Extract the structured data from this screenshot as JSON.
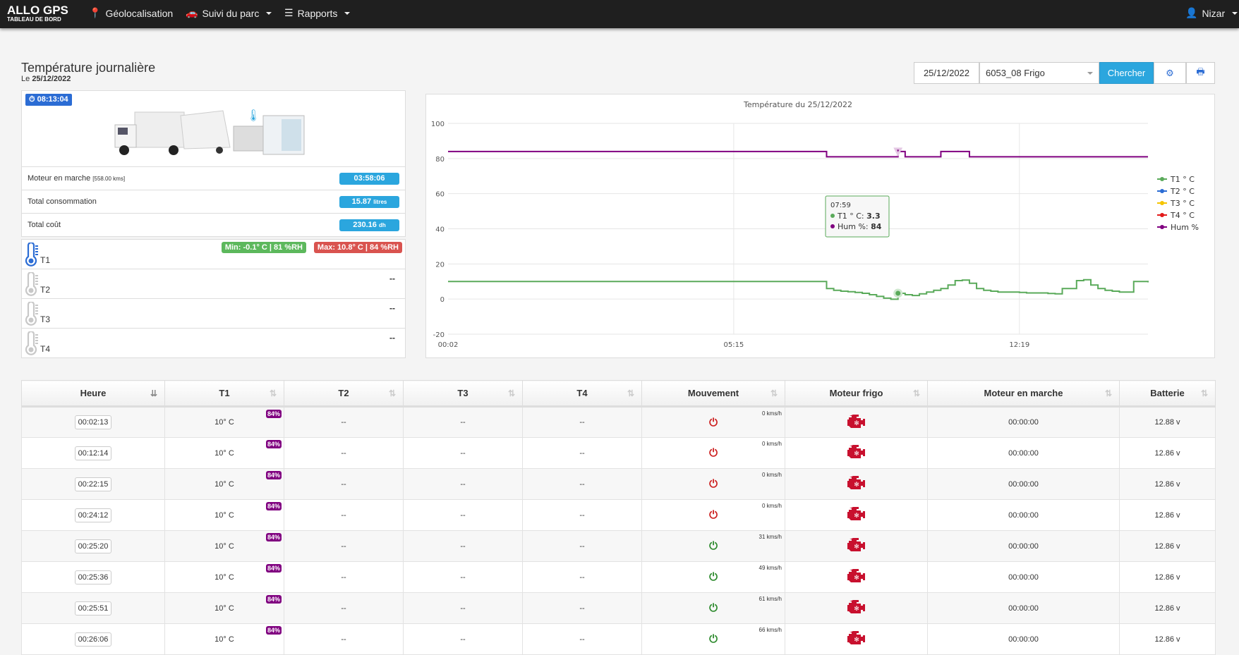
{
  "nav": {
    "brand": "ALLO GPS",
    "brand_sub": "TABLEAU DE BORD",
    "items": [
      "Géolocalisation",
      "Suivi du parc",
      "Rapports"
    ],
    "user": "Nizar"
  },
  "page": {
    "title": "Température journalière",
    "date_prefix": "Le",
    "date": "25/12/2022"
  },
  "toolbar": {
    "date_value": "25/12/2022",
    "vehicle": "6053_08 Frigo",
    "search_label": "Chercher",
    "icons": [
      "gear-icon",
      "print-icon"
    ]
  },
  "summary": {
    "clock": "08:13:04",
    "rows": [
      {
        "label": "Moteur en marche",
        "note": "[558.00 kms]",
        "value": "03:58:06",
        "unit": ""
      },
      {
        "label": "Total consommation",
        "note": "",
        "value": "15.87",
        "unit": "litres"
      },
      {
        "label": "Total coût",
        "note": "",
        "value": "230.16",
        "unit": "dh"
      }
    ]
  },
  "sensors": [
    {
      "label": "T1",
      "active": true,
      "min": "Min: -0.1° C | 81 %RH",
      "max": "Max: 10.8° C | 84 %RH",
      "value": ""
    },
    {
      "label": "T2",
      "active": false,
      "value": "--"
    },
    {
      "label": "T3",
      "active": false,
      "value": "--"
    },
    {
      "label": "T4",
      "active": false,
      "value": "--"
    }
  ],
  "colors": {
    "primary": "#2ba6de",
    "green": "#5cb85c",
    "red": "#d9534f",
    "purple": "#800080",
    "t1": "#5aaa5a",
    "t2": "#2b6cd4",
    "t3": "#f5c400",
    "t4": "#e31a1a"
  },
  "chart_data": {
    "type": "line",
    "title": "Température du 25/12/2022",
    "x_ticks": [
      {
        "index": 0,
        "label": "00:02"
      },
      {
        "index": 40,
        "label": "05:15"
      },
      {
        "index": 80,
        "label": "12:19"
      }
    ],
    "ylim": [
      -20,
      100
    ],
    "yticks": [
      -20,
      0,
      20,
      40,
      60,
      80,
      100
    ],
    "grid": true,
    "legend": "right",
    "series": [
      {
        "name": "T1 ° C",
        "color": "#5aaa5a",
        "values": [
          10,
          10,
          10,
          10,
          10,
          10,
          10,
          10,
          10,
          10,
          10,
          10,
          10,
          10,
          10,
          10,
          10,
          10,
          10,
          10,
          10,
          10,
          10,
          10,
          10,
          10,
          10,
          10,
          10,
          10,
          10,
          10,
          10,
          10,
          10,
          10,
          10,
          10,
          10,
          10,
          10,
          10,
          10,
          10,
          10,
          10,
          10,
          10,
          10,
          10,
          10,
          10,
          10,
          6,
          5,
          4.5,
          4.2,
          3.8,
          3.3,
          2.5,
          1.5,
          0.5,
          -0.1,
          3.3,
          2.5,
          2,
          3,
          4,
          5,
          6,
          8,
          10.5,
          10.8,
          9,
          6,
          5,
          4.5,
          4,
          4,
          4,
          3.8,
          3.5,
          3.5,
          3.5,
          3.2,
          3,
          6,
          6,
          10.5,
          11,
          8,
          6,
          5,
          4.5,
          4,
          4,
          10,
          10,
          9.5
        ]
      },
      {
        "name": "T2 ° C",
        "color": "#2b6cd4",
        "values": []
      },
      {
        "name": "T3 ° C",
        "color": "#f5c400",
        "values": []
      },
      {
        "name": "T4 ° C",
        "color": "#e31a1a",
        "values": []
      },
      {
        "name": "Hum %",
        "color": "#800080",
        "values": [
          84,
          84,
          84,
          84,
          84,
          84,
          84,
          84,
          84,
          84,
          84,
          84,
          84,
          84,
          84,
          84,
          84,
          84,
          84,
          84,
          84,
          84,
          84,
          84,
          84,
          84,
          84,
          84,
          84,
          84,
          84,
          84,
          84,
          84,
          84,
          84,
          84,
          84,
          84,
          84,
          84,
          84,
          84,
          84,
          84,
          84,
          84,
          84,
          84,
          84,
          84,
          84,
          84,
          81,
          81,
          81,
          81,
          81,
          81,
          81,
          81,
          81,
          81,
          84,
          81,
          81,
          81,
          81,
          81,
          84,
          84,
          84,
          84,
          81,
          81,
          81,
          81,
          81,
          81,
          81,
          81,
          81,
          81,
          81,
          81,
          81,
          81,
          81,
          81,
          81,
          81,
          81,
          81,
          81,
          81,
          81,
          81,
          81,
          81
        ]
      }
    ],
    "tooltip": {
      "index": 63,
      "time": "07:59",
      "lines": [
        {
          "label": "T1 ° C: ",
          "value": "3.3"
        },
        {
          "label": "Hum %: ",
          "value": "84"
        }
      ]
    }
  },
  "table": {
    "columns": [
      "Heure",
      "T1",
      "T2",
      "T3",
      "T4",
      "Mouvement",
      "Moteur frigo",
      "Moteur en marche",
      "Batterie"
    ],
    "rows": [
      {
        "time": "00:02:13",
        "t1": "10° C",
        "hum": "84%",
        "t2": "--",
        "t3": "--",
        "t4": "--",
        "moving": false,
        "speed": "0 kms/h",
        "engine": "00:00:00",
        "battery": "12.88 v"
      },
      {
        "time": "00:12:14",
        "t1": "10° C",
        "hum": "84%",
        "t2": "--",
        "t3": "--",
        "t4": "--",
        "moving": false,
        "speed": "0 kms/h",
        "engine": "00:00:00",
        "battery": "12.86 v"
      },
      {
        "time": "00:22:15",
        "t1": "10° C",
        "hum": "84%",
        "t2": "--",
        "t3": "--",
        "t4": "--",
        "moving": false,
        "speed": "0 kms/h",
        "engine": "00:00:00",
        "battery": "12.86 v"
      },
      {
        "time": "00:24:12",
        "t1": "10° C",
        "hum": "84%",
        "t2": "--",
        "t3": "--",
        "t4": "--",
        "moving": false,
        "speed": "0 kms/h",
        "engine": "00:00:00",
        "battery": "12.86 v"
      },
      {
        "time": "00:25:20",
        "t1": "10° C",
        "hum": "84%",
        "t2": "--",
        "t3": "--",
        "t4": "--",
        "moving": true,
        "speed": "31 kms/h",
        "engine": "00:00:00",
        "battery": "12.86 v"
      },
      {
        "time": "00:25:36",
        "t1": "10° C",
        "hum": "84%",
        "t2": "--",
        "t3": "--",
        "t4": "--",
        "moving": true,
        "speed": "49 kms/h",
        "engine": "00:00:00",
        "battery": "12.86 v"
      },
      {
        "time": "00:25:51",
        "t1": "10° C",
        "hum": "84%",
        "t2": "--",
        "t3": "--",
        "t4": "--",
        "moving": true,
        "speed": "61 kms/h",
        "engine": "00:00:00",
        "battery": "12.86 v"
      },
      {
        "time": "00:26:06",
        "t1": "10° C",
        "hum": "84%",
        "t2": "--",
        "t3": "--",
        "t4": "--",
        "moving": true,
        "speed": "66 kms/h",
        "engine": "00:00:00",
        "battery": "12.86 v"
      }
    ]
  }
}
